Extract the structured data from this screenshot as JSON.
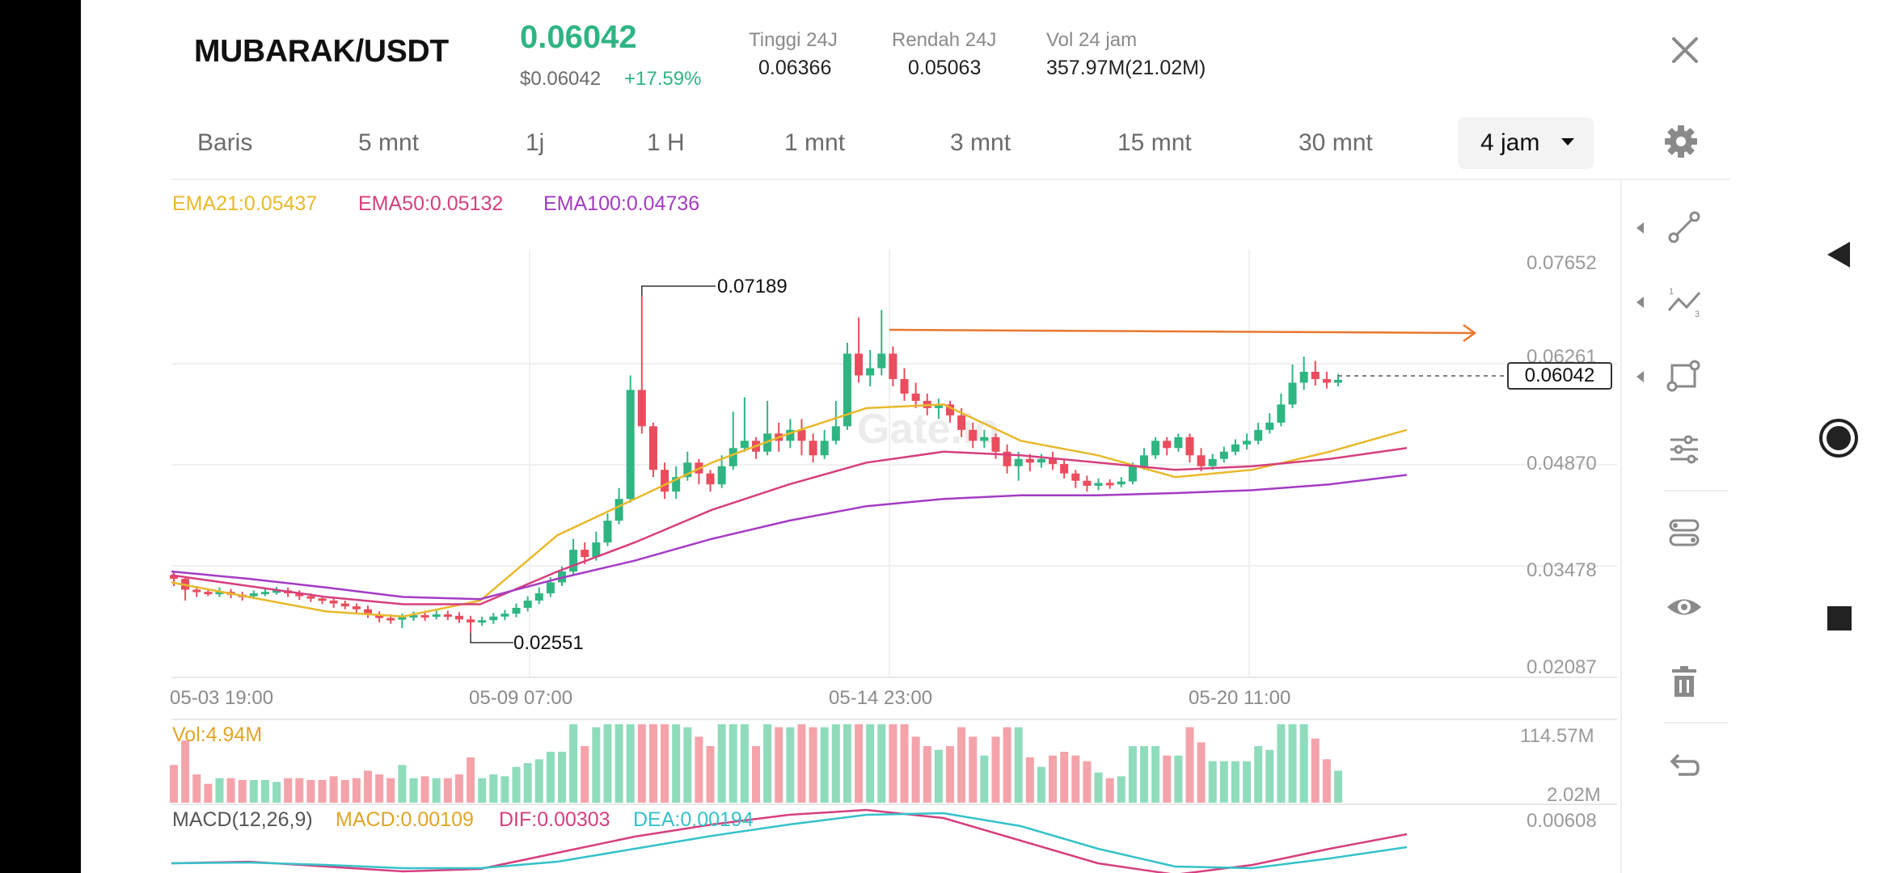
{
  "header": {
    "pair": "MUBARAK/USDT",
    "price": "0.06042",
    "price_usd": "$0.06042",
    "change": "+17.59%",
    "stats": [
      {
        "label": "Tinggi 24J",
        "value": "0.06366"
      },
      {
        "label": "Rendah 24J",
        "value": "0.05063"
      },
      {
        "label": "Vol 24 jam",
        "value": "357.97M(21.02M)"
      }
    ]
  },
  "timeframes": [
    "Baris",
    "5 mnt",
    "1j",
    "1 H",
    "1 mnt",
    "3 mnt",
    "15 mnt",
    "30 mnt"
  ],
  "active_timeframe": "4 jam",
  "ema_legend": [
    {
      "text": "EMA21:0.05437",
      "color": "#e8b92a"
    },
    {
      "text": "EMA50:0.05132",
      "color": "#d63f7e"
    },
    {
      "text": "EMA100:0.04736",
      "color": "#a43bc4"
    }
  ],
  "watermark": "Gate.io",
  "chart_data": {
    "type": "line",
    "price_axis": {
      "ticks": [
        "0.07652",
        "0.06261",
        "0.04870",
        "0.03478",
        "0.02087"
      ],
      "range": [
        0.02087,
        0.07652
      ]
    },
    "x_labels": [
      "05-03 19:00",
      "05-09 07:00",
      "05-14 23:00",
      "05-20 11:00"
    ],
    "annotations": {
      "high": "0.07189",
      "low": "0.02551",
      "current": "0.06042"
    },
    "series": [
      {
        "name": "EMA21",
        "color": "#e8b92a",
        "values": [
          0.0325,
          0.0305,
          0.0285,
          0.0278,
          0.03,
          0.039,
          0.044,
          0.049,
          0.053,
          0.0565,
          0.057,
          0.052,
          0.05,
          0.047,
          0.048,
          0.0505,
          0.0535
        ]
      },
      {
        "name": "EMA50",
        "color": "#d63f7e",
        "values": [
          0.0335,
          0.032,
          0.0305,
          0.0295,
          0.0295,
          0.034,
          0.038,
          0.0425,
          0.046,
          0.049,
          0.0505,
          0.05,
          0.049,
          0.048,
          0.0485,
          0.0495,
          0.051
        ]
      },
      {
        "name": "EMA100",
        "color": "#a43bc4",
        "values": [
          0.034,
          0.033,
          0.0318,
          0.0305,
          0.0302,
          0.033,
          0.0355,
          0.0385,
          0.041,
          0.043,
          0.044,
          0.0445,
          0.0445,
          0.0448,
          0.0452,
          0.046,
          0.0473
        ]
      }
    ],
    "candles": [
      [
        0.0335,
        0.033,
        0.034,
        0.032
      ],
      [
        0.033,
        0.0315,
        0.0333,
        0.03
      ],
      [
        0.0315,
        0.0312,
        0.032,
        0.0305
      ],
      [
        0.0312,
        0.031,
        0.0316,
        0.0306
      ],
      [
        0.031,
        0.0312,
        0.0318,
        0.0305
      ],
      [
        0.0312,
        0.0308,
        0.0316,
        0.0303
      ],
      [
        0.0308,
        0.0306,
        0.0312,
        0.03
      ],
      [
        0.0306,
        0.031,
        0.0314,
        0.0302
      ],
      [
        0.031,
        0.0312,
        0.0318,
        0.0306
      ],
      [
        0.0312,
        0.0314,
        0.0319,
        0.0308
      ],
      [
        0.0314,
        0.031,
        0.0318,
        0.0305
      ],
      [
        0.031,
        0.0306,
        0.0314,
        0.0301
      ],
      [
        0.0306,
        0.0303,
        0.031,
        0.0298
      ],
      [
        0.0303,
        0.03,
        0.0307,
        0.0295
      ],
      [
        0.03,
        0.0296,
        0.0304,
        0.029
      ],
      [
        0.0296,
        0.0292,
        0.03,
        0.0288
      ],
      [
        0.0292,
        0.0288,
        0.0296,
        0.0283
      ],
      [
        0.0288,
        0.028,
        0.0293,
        0.0276
      ],
      [
        0.028,
        0.0276,
        0.0285,
        0.027
      ],
      [
        0.0276,
        0.0274,
        0.0281,
        0.0268
      ],
      [
        0.0274,
        0.0277,
        0.0282,
        0.0262
      ],
      [
        0.0277,
        0.028,
        0.0285,
        0.0272
      ],
      [
        0.028,
        0.0278,
        0.0286,
        0.0272
      ],
      [
        0.0278,
        0.0281,
        0.0287,
        0.0274
      ],
      [
        0.0281,
        0.0279,
        0.0286,
        0.0273
      ],
      [
        0.0279,
        0.0274,
        0.0284,
        0.0269
      ],
      [
        0.0274,
        0.027,
        0.0279,
        0.0255
      ],
      [
        0.027,
        0.0273,
        0.0278,
        0.0265
      ],
      [
        0.0273,
        0.0278,
        0.0283,
        0.0268
      ],
      [
        0.0278,
        0.0282,
        0.0287,
        0.0273
      ],
      [
        0.0282,
        0.029,
        0.0296,
        0.0277
      ],
      [
        0.029,
        0.03,
        0.0306,
        0.0285
      ],
      [
        0.03,
        0.031,
        0.0318,
        0.0295
      ],
      [
        0.031,
        0.0325,
        0.0332,
        0.0305
      ],
      [
        0.0325,
        0.034,
        0.0347,
        0.032
      ],
      [
        0.034,
        0.037,
        0.0385,
        0.0335
      ],
      [
        0.037,
        0.036,
        0.038,
        0.035
      ],
      [
        0.036,
        0.038,
        0.0395,
        0.0355
      ],
      [
        0.038,
        0.041,
        0.042,
        0.0375
      ],
      [
        0.041,
        0.044,
        0.0455,
        0.0405
      ],
      [
        0.044,
        0.059,
        0.061,
        0.0435
      ],
      [
        0.059,
        0.054,
        0.0719,
        0.053
      ],
      [
        0.054,
        0.048,
        0.0545,
        0.047
      ],
      [
        0.048,
        0.045,
        0.049,
        0.044
      ],
      [
        0.045,
        0.047,
        0.0485,
        0.044
      ],
      [
        0.047,
        0.049,
        0.0505,
        0.0465
      ],
      [
        0.049,
        0.0475,
        0.0495,
        0.046
      ],
      [
        0.0475,
        0.046,
        0.048,
        0.045
      ],
      [
        0.046,
        0.0485,
        0.05,
        0.0455
      ],
      [
        0.0485,
        0.051,
        0.056,
        0.048
      ],
      [
        0.051,
        0.052,
        0.058,
        0.0505
      ],
      [
        0.052,
        0.0505,
        0.0525,
        0.0495
      ],
      [
        0.0505,
        0.053,
        0.0575,
        0.05
      ],
      [
        0.053,
        0.052,
        0.0545,
        0.0505
      ],
      [
        0.052,
        0.0535,
        0.055,
        0.051
      ],
      [
        0.0535,
        0.052,
        0.055,
        0.05
      ],
      [
        0.052,
        0.05,
        0.053,
        0.049
      ],
      [
        0.05,
        0.052,
        0.0535,
        0.0495
      ],
      [
        0.052,
        0.054,
        0.0575,
        0.0515
      ],
      [
        0.054,
        0.064,
        0.0655,
        0.0535
      ],
      [
        0.064,
        0.061,
        0.069,
        0.06
      ],
      [
        0.061,
        0.062,
        0.0645,
        0.0595
      ],
      [
        0.062,
        0.064,
        0.07,
        0.061
      ],
      [
        0.064,
        0.0605,
        0.065,
        0.0595
      ],
      [
        0.0605,
        0.0585,
        0.062,
        0.0575
      ],
      [
        0.0585,
        0.0575,
        0.06,
        0.0565
      ],
      [
        0.0575,
        0.0565,
        0.0585,
        0.0555
      ],
      [
        0.0565,
        0.057,
        0.0578,
        0.055
      ],
      [
        0.057,
        0.0555,
        0.0575,
        0.0545
      ],
      [
        0.0555,
        0.0535,
        0.0565,
        0.0525
      ],
      [
        0.0535,
        0.052,
        0.0545,
        0.051
      ],
      [
        0.052,
        0.0525,
        0.0535,
        0.051
      ],
      [
        0.0525,
        0.0505,
        0.053,
        0.0495
      ],
      [
        0.0505,
        0.0485,
        0.0515,
        0.0475
      ],
      [
        0.0485,
        0.0495,
        0.0505,
        0.0465
      ],
      [
        0.0495,
        0.049,
        0.0502,
        0.0478
      ],
      [
        0.049,
        0.0495,
        0.0502,
        0.0483
      ],
      [
        0.0495,
        0.0488,
        0.0505,
        0.048
      ],
      [
        0.0488,
        0.0475,
        0.0495,
        0.0468
      ],
      [
        0.0475,
        0.0465,
        0.048,
        0.0455
      ],
      [
        0.0465,
        0.0458,
        0.0472,
        0.045
      ],
      [
        0.0458,
        0.0462,
        0.0468,
        0.0452
      ],
      [
        0.0462,
        0.046,
        0.0467,
        0.0454
      ],
      [
        0.046,
        0.0464,
        0.047,
        0.0456
      ],
      [
        0.0464,
        0.0485,
        0.049,
        0.046
      ],
      [
        0.0485,
        0.05,
        0.051,
        0.048
      ],
      [
        0.05,
        0.052,
        0.0525,
        0.0495
      ],
      [
        0.052,
        0.051,
        0.0525,
        0.05
      ],
      [
        0.051,
        0.0525,
        0.053,
        0.0505
      ],
      [
        0.0525,
        0.05,
        0.053,
        0.049
      ],
      [
        0.05,
        0.0485,
        0.051,
        0.0478
      ],
      [
        0.0485,
        0.0495,
        0.0502,
        0.048
      ],
      [
        0.0495,
        0.0505,
        0.0512,
        0.049
      ],
      [
        0.0505,
        0.0515,
        0.0522,
        0.05
      ],
      [
        0.0515,
        0.052,
        0.053,
        0.0508
      ],
      [
        0.052,
        0.0535,
        0.0545,
        0.0515
      ],
      [
        0.0535,
        0.0545,
        0.0558,
        0.053
      ],
      [
        0.0545,
        0.057,
        0.0585,
        0.054
      ],
      [
        0.057,
        0.06,
        0.0625,
        0.0565
      ],
      [
        0.06,
        0.0615,
        0.0636,
        0.059
      ],
      [
        0.0615,
        0.0605,
        0.063,
        0.0596
      ],
      [
        0.0605,
        0.06,
        0.0615,
        0.0592
      ],
      [
        0.06,
        0.0604,
        0.0612,
        0.0595
      ]
    ],
    "volume": {
      "label": "Vol:4.94M",
      "ticks": [
        "114.57M",
        "2.02M"
      ]
    },
    "macd": {
      "label": "MACD(12,26,9)",
      "macd": "MACD:0.00109",
      "dif": "DIF:0.00303",
      "dea": "DEA:0.00194",
      "tick": "0.00608"
    }
  },
  "tools": [
    "trend-line-tool",
    "fib-tool",
    "shape-tool",
    "indicator-settings",
    "layers-tool",
    "visibility-tool",
    "delete-tool",
    "undo-tool"
  ],
  "navbar": {
    "back": "back",
    "home": "home",
    "recents": "recents"
  }
}
